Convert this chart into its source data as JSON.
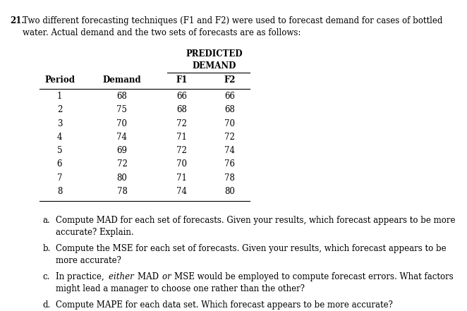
{
  "question_number": "21.",
  "intro_text": "Two different forecasting techniques (F1 and F2) were used to forecast demand for cases of bottled\nwater. Actual demand and the two sets of forecasts are as follows:",
  "predicted_demand_label": "PREDICTED\nDEMAND",
  "col_headers": [
    "Period",
    "Demand",
    "F1",
    "F2"
  ],
  "col_headers_bold": [
    true,
    true,
    true,
    true
  ],
  "table_data": [
    [
      1,
      68,
      66,
      66
    ],
    [
      2,
      75,
      68,
      68
    ],
    [
      3,
      70,
      72,
      70
    ],
    [
      4,
      74,
      71,
      72
    ],
    [
      5,
      69,
      72,
      74
    ],
    [
      6,
      72,
      70,
      76
    ],
    [
      7,
      80,
      71,
      78
    ],
    [
      8,
      78,
      74,
      80
    ]
  ],
  "parts": [
    "a. Compute MAD for each set of forecasts. Given your results, which forecast appears to be more\n     accurate? Explain.",
    "b. Compute the MSE for each set of forecasts. Given your results, which forecast appears to be\n     more accurate?",
    "c. In practice, either MAD or MSE would be employed to compute forecast errors. What factors\n     might lead a manager to choose one rather than the other?",
    "d. Compute MAPE for each data set. Which forecast appears to be more accurate?"
  ],
  "parts_italic_words": {
    "2": [
      "either",
      "or"
    ]
  },
  "bg_color": "#ffffff",
  "text_color": "#000000",
  "font_size_intro": 8.5,
  "font_size_table": 8.5,
  "font_size_parts": 8.5
}
